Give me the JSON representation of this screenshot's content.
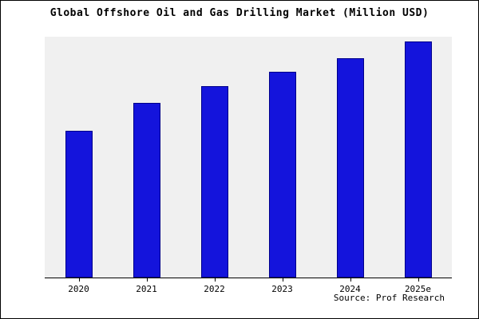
{
  "title": "Global Offshore Oil and Gas Drilling Market (Million USD)",
  "source": "Source: Prof Research",
  "colors": {
    "bar": "#1414dc",
    "bar_border": "#00008b",
    "plot_bg": "#f0f0f0",
    "frame": "#000000"
  },
  "chart_data": {
    "type": "bar",
    "title": "Global Offshore Oil and Gas Drilling Market (Million USD)",
    "categories": [
      "2020",
      "2021",
      "2022",
      "2023",
      "2024",
      "2025e"
    ],
    "values": [
      62,
      74,
      81,
      87,
      93,
      100
    ],
    "xlabel": "",
    "ylabel": "",
    "ylim": [
      0,
      102
    ],
    "grid": false,
    "legend": false,
    "y_axis_labels_visible": false,
    "annotation": "Source: Prof Research"
  }
}
